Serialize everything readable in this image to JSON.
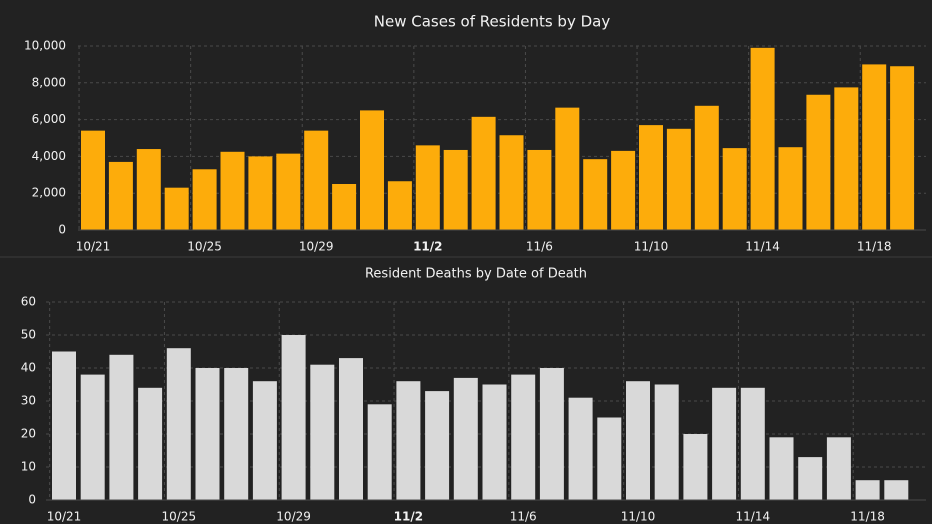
{
  "colors": {
    "background": "#222222",
    "cases_bar": "#FDAC0B",
    "deaths_bar": "#D9D9D9",
    "text": "#F2F2F2",
    "grid": "#4A4A4A",
    "divider": "#3C3C3C"
  },
  "chart_data": [
    {
      "type": "bar",
      "title": "New Cases of Residents by Day",
      "xlabel": "",
      "ylabel": "",
      "ylim": [
        0,
        10000
      ],
      "yticks": [
        0,
        2000,
        4000,
        6000,
        8000,
        10000
      ],
      "ytick_labels": [
        "0",
        "2,000",
        "4,000",
        "6,000",
        "8,000",
        "10,000"
      ],
      "categories": [
        "10/21",
        "10/22",
        "10/23",
        "10/24",
        "10/25",
        "10/26",
        "10/27",
        "10/28",
        "10/29",
        "10/30",
        "10/31",
        "11/1",
        "11/2",
        "11/3",
        "11/4",
        "11/5",
        "11/6",
        "11/7",
        "11/8",
        "11/9",
        "11/10",
        "11/11",
        "11/12",
        "11/13",
        "11/14",
        "11/15",
        "11/16",
        "11/17",
        "11/18",
        "11/19"
      ],
      "values": [
        5400,
        3700,
        4400,
        2300,
        3300,
        4250,
        4000,
        4150,
        5400,
        2500,
        6500,
        2650,
        4600,
        4350,
        6150,
        5150,
        4350,
        6650,
        3850,
        4300,
        5700,
        5500,
        6750,
        4450,
        9900,
        4500,
        7350,
        7750,
        9000,
        8900
      ],
      "xtick_labels": [
        "10/21",
        "10/25",
        "10/29",
        "11/2",
        "11/6",
        "11/10",
        "11/14",
        "11/18"
      ],
      "xtick_indices": [
        0,
        4,
        8,
        12,
        16,
        20,
        24,
        28
      ],
      "xtick_bold": "11/2",
      "grid": true
    },
    {
      "type": "bar",
      "title": "Resident Deaths by Date of Death",
      "xlabel": "",
      "ylabel": "",
      "ylim": [
        0,
        60
      ],
      "yticks": [
        0,
        10,
        20,
        30,
        40,
        50,
        60
      ],
      "ytick_labels": [
        "0",
        "10",
        "20",
        "30",
        "40",
        "50",
        "60"
      ],
      "categories": [
        "10/21",
        "10/22",
        "10/23",
        "10/24",
        "10/25",
        "10/26",
        "10/27",
        "10/28",
        "10/29",
        "10/30",
        "10/31",
        "11/1",
        "11/2",
        "11/3",
        "11/4",
        "11/5",
        "11/6",
        "11/7",
        "11/8",
        "11/9",
        "11/10",
        "11/11",
        "11/12",
        "11/13",
        "11/14",
        "11/15",
        "11/16",
        "11/17",
        "11/18",
        "11/19"
      ],
      "values": [
        45,
        38,
        44,
        34,
        46,
        40,
        40,
        36,
        50,
        41,
        43,
        29,
        36,
        33,
        37,
        35,
        38,
        40,
        31,
        25,
        36,
        35,
        20,
        34,
        34,
        19,
        13,
        19,
        6,
        6
      ],
      "xtick_labels": [
        "10/21",
        "10/25",
        "10/29",
        "11/2",
        "11/6",
        "11/10",
        "11/14",
        "11/18"
      ],
      "xtick_indices": [
        0,
        4,
        8,
        12,
        16,
        20,
        24,
        28
      ],
      "xtick_bold": "11/2",
      "grid": true
    }
  ]
}
